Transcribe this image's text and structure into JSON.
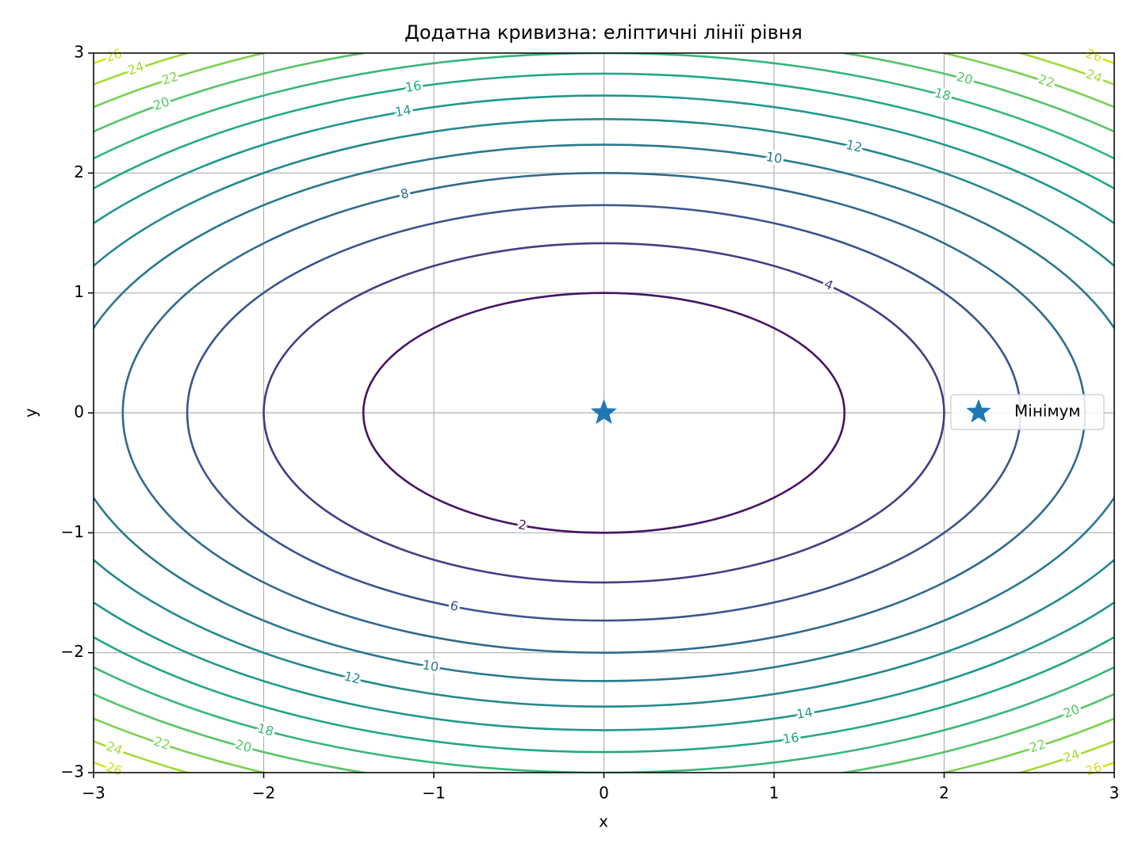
{
  "chart_data": {
    "type": "contour",
    "title": "Додатна кривизна: еліптичні лінії рівня",
    "x_label": "x",
    "y_label": "y",
    "levels": [
      2,
      4,
      6,
      8,
      10,
      12,
      14,
      16,
      18,
      20,
      22,
      24,
      26
    ],
    "colors": [
      "#471365",
      "#433e85",
      "#3a548c",
      "#306a8e",
      "#2a788e",
      "#23898e",
      "#1f988b",
      "#22a884",
      "#35b779",
      "#54c568",
      "#7ad151",
      "#a5db36",
      "#d2e21b"
    ],
    "minimum": {
      "name": "Мінімум",
      "x": 0,
      "y": 0,
      "color": "#1f77b4"
    },
    "xlim": [
      -3,
      3
    ],
    "ylim": [
      -3,
      3
    ],
    "xticks": [
      {
        "value": -3,
        "label": "−3"
      },
      {
        "value": -2,
        "label": "−2"
      },
      {
        "value": -1,
        "label": "−1"
      },
      0,
      1,
      2,
      3
    ],
    "yticks": [
      {
        "value": -3,
        "label": "−3"
      },
      {
        "value": -2,
        "label": "−2"
      },
      {
        "value": -1,
        "label": "−1"
      },
      0,
      1,
      2,
      3
    ],
    "grid": true,
    "legend": "right"
  }
}
